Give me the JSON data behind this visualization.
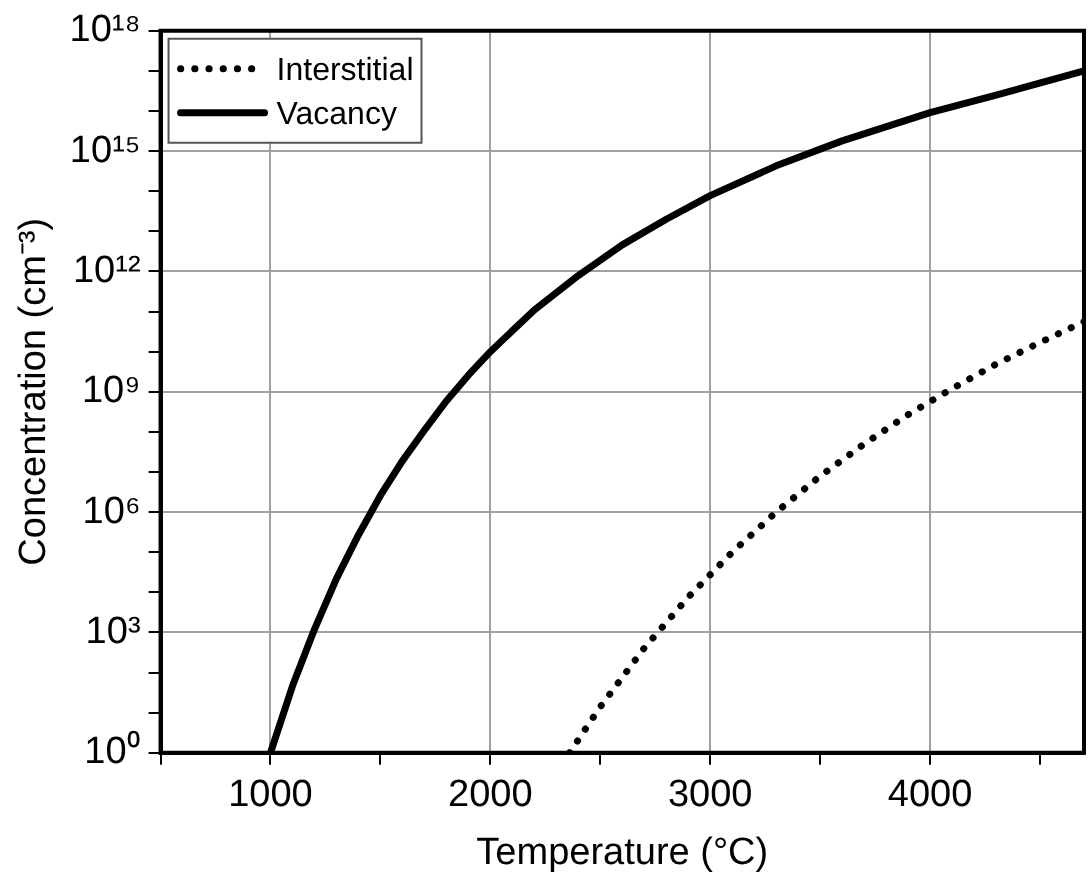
{
  "chart_data": {
    "type": "line",
    "xlabel": "Temperature (°C)",
    "ylabel": "Concentration (cm⁻³)",
    "series": [
      {
        "name": "Interstitial",
        "color": "#000000",
        "line_style": "dotted",
        "x": [
          2360,
          2500,
          2700,
          2900,
          3100,
          3300,
          3500,
          3700,
          3900,
          4100,
          4300,
          4500,
          4700
        ],
        "values": [
          1,
          14,
          410,
          7600,
          100000,
          1000000,
          7900000,
          50000000,
          270000000,
          1200000000,
          4900000000,
          17000000000,
          56000000000
        ]
      },
      {
        "name": "Vacancy",
        "color": "#000000",
        "line_style": "solid",
        "x": [
          1000,
          1100,
          1200,
          1300,
          1400,
          1500,
          1600,
          1700,
          1800,
          1900,
          2000,
          2200,
          2400,
          2600,
          2800,
          3000,
          3300,
          3600,
          4000,
          4300,
          4700
        ],
        "values": [
          1,
          46,
          1200,
          22000,
          270000,
          2600000,
          19000000,
          110000000,
          590000000,
          2600000000,
          10000000000,
          110000000000,
          790000000000,
          4600000000000.0,
          20000000000000.0,
          78000000000000.0,
          430000000000000.0,
          1800000000000000.0,
          9100000000000000.0,
          2.5e+16,
          1e+17
        ]
      }
    ],
    "log": "y",
    "xlim": [
      500,
      4700
    ],
    "ylim": [
      1,
      1e+18
    ],
    "xticks": [
      {
        "value": 500,
        "label": null
      },
      1000,
      {
        "value": 1500,
        "label": null
      },
      2000,
      {
        "value": 2500,
        "label": null
      },
      3000,
      {
        "value": 3500,
        "label": null
      },
      4000,
      {
        "value": 4500,
        "label": null
      }
    ],
    "yticks": [
      {
        "value": 1,
        "label": "10⁰"
      },
      {
        "value": 10,
        "label": null
      },
      {
        "value": 100,
        "label": null
      },
      {
        "value": 1000.0,
        "label": "10³"
      },
      {
        "value": 10000.0,
        "label": null
      },
      {
        "value": 100000.0,
        "label": null
      },
      {
        "value": 1000000.0,
        "label": "10⁶"
      },
      {
        "value": 10000000.0,
        "label": null
      },
      {
        "value": 100000000.0,
        "label": null
      },
      {
        "value": 1000000000.0,
        "label": "10⁹"
      },
      {
        "value": 10000000000.0,
        "label": null
      },
      {
        "value": 100000000000.0,
        "label": null
      },
      {
        "value": 1000000000000.0,
        "label": "10¹²"
      },
      {
        "value": 10000000000000.0,
        "label": null
      },
      {
        "value": 100000000000000.0,
        "label": null
      },
      {
        "value": 1000000000000000.0,
        "label": "10¹⁵"
      },
      {
        "value": 1e+16,
        "label": null
      },
      {
        "value": 1e+17,
        "label": null
      },
      {
        "value": 1e+18,
        "label": "10¹⁸"
      }
    ],
    "grid": true,
    "legend": "top left",
    "marker": "none"
  }
}
